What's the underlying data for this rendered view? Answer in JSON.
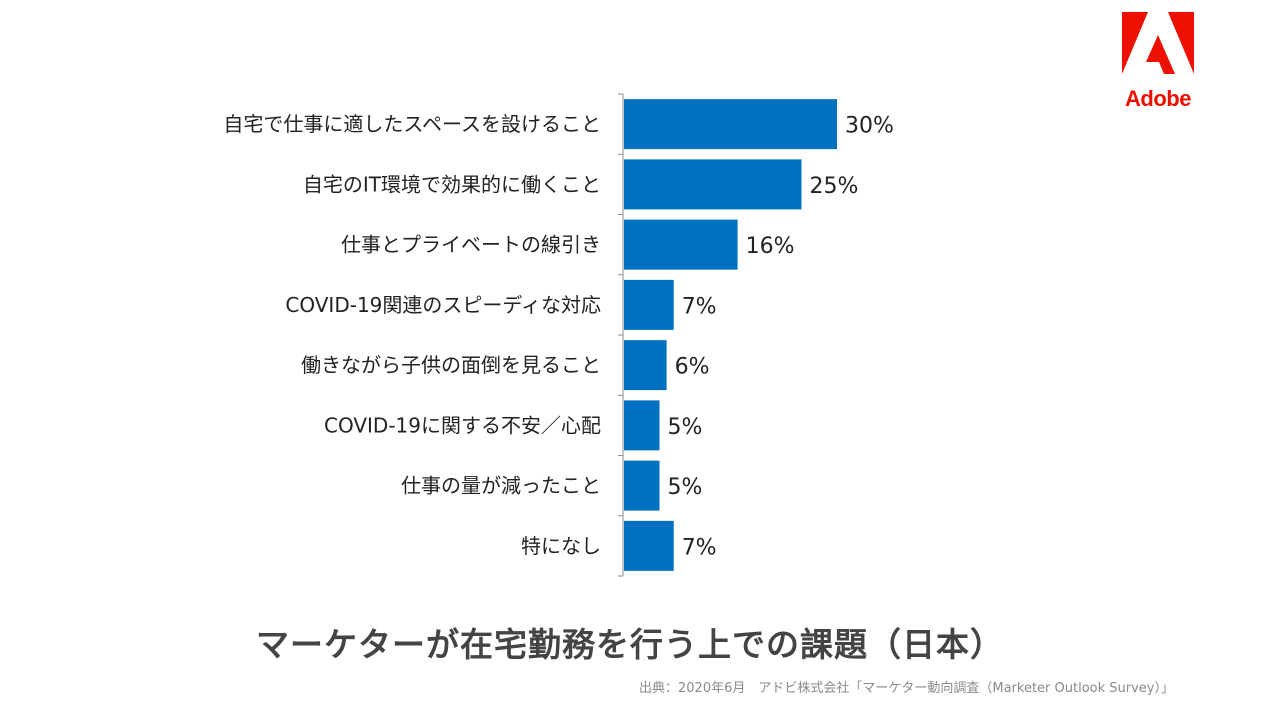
{
  "logo": {
    "text": "Adobe",
    "color": "#eb1000"
  },
  "chart_data": {
    "type": "bar",
    "orientation": "horizontal",
    "title": "マーケターが在宅勤務を行う上での課題（日本）",
    "source": "出典：2020年6月　アドビ株式会社「マーケター動向調査（Marketer Outlook Survey）」",
    "categories": [
      "自宅で仕事に適したスペースを設けること",
      "自宅のIT環境で効果的に働くこと",
      "仕事とプライベートの線引き",
      "COVID-19関連のスピーディな対応",
      "働きながら子供の面倒を見ること",
      "COVID-19に関する不安／心配",
      "仕事の量が減ったこと",
      "特になし"
    ],
    "values": [
      30,
      25,
      16,
      7,
      6,
      5,
      5,
      7
    ],
    "value_labels": [
      "30%",
      "25%",
      "16%",
      "7%",
      "6%",
      "5%",
      "5%",
      "7%"
    ],
    "unit": "%",
    "xlim": [
      0,
      100
    ],
    "bar_color": "#0070c0",
    "grid": false,
    "legend": "none"
  }
}
